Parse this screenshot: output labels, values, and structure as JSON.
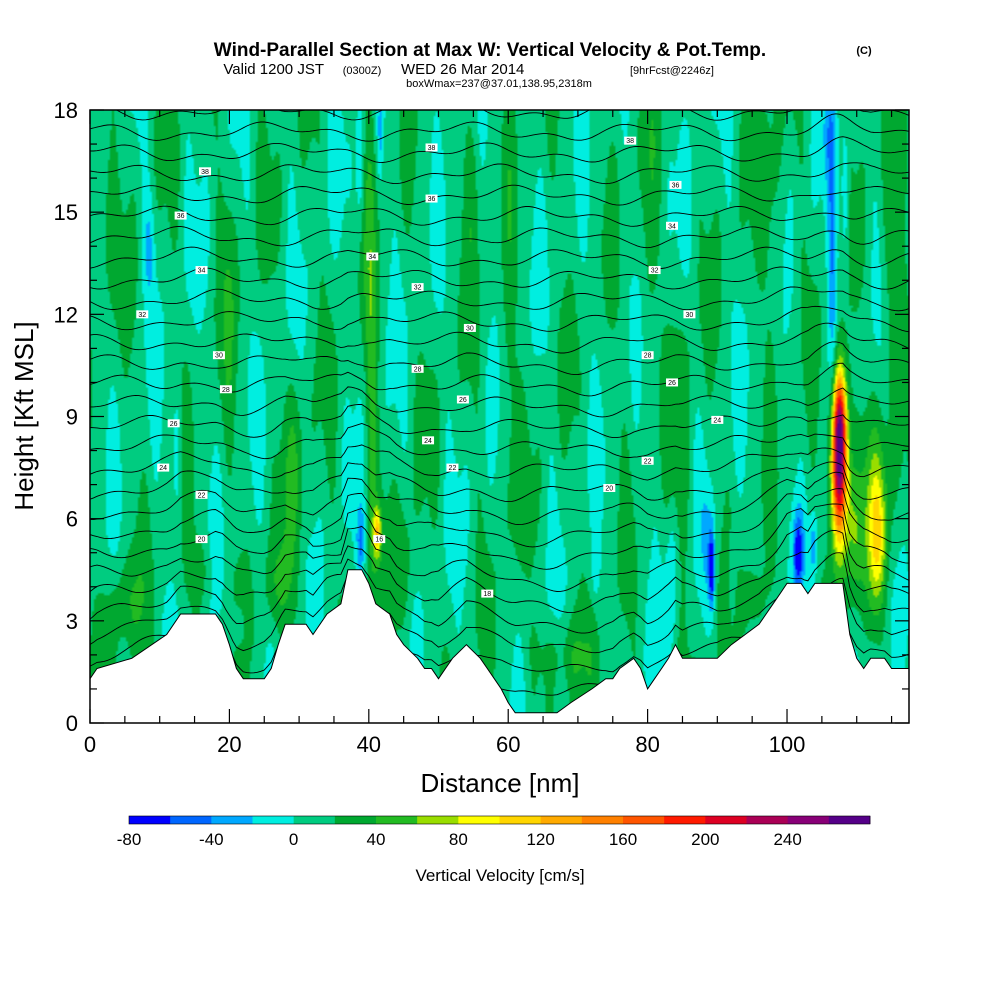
{
  "title": {
    "main": "Wind-Parallel Section at Max W: Vertical Velocity & Pot.Temp.",
    "copyright": "(C)",
    "valid_prefix": "Valid 1200 JST",
    "valid_utc": "(0300Z)",
    "valid_date": "WED 26 Mar 2014",
    "forecast": "[9hrFcst@2246z]",
    "box_info": "boxWmax=237@37.01,138.95,2318m"
  },
  "chart_data": {
    "type": "heatmap",
    "xlabel": "Distance [nm]",
    "ylabel": "Height [Kft MSL]",
    "xlim": [
      0,
      117.5
    ],
    "ylim": [
      0,
      18
    ],
    "x_ticks": [
      0,
      20,
      40,
      60,
      80,
      100
    ],
    "y_ticks": [
      0,
      3,
      6,
      9,
      12,
      15,
      18
    ],
    "colorbar": {
      "label": "Vertical Velocity [cm/s]",
      "min": -80,
      "step": 20,
      "tick_labels": [
        "-80",
        "-40",
        "0",
        "40",
        "80",
        "120",
        "160",
        "200",
        "240"
      ],
      "colors": [
        "#0000ff",
        "#0066ff",
        "#00a8ff",
        "#00eee0",
        "#00cc80",
        "#00a830",
        "#22bb22",
        "#99dd00",
        "#ffff00",
        "#ffd500",
        "#ffaa00",
        "#ff8000",
        "#ff5500",
        "#ff1a00",
        "#dd0022",
        "#aa0055",
        "#880077",
        "#550088"
      ]
    },
    "terrain_profile": [
      [
        0,
        1.3
      ],
      [
        1,
        1.6
      ],
      [
        6,
        1.9
      ],
      [
        11,
        2.6
      ],
      [
        13,
        3.2
      ],
      [
        18,
        3.2
      ],
      [
        19,
        2.9
      ],
      [
        20,
        2.3
      ],
      [
        21,
        1.6
      ],
      [
        22,
        1.3
      ],
      [
        25,
        1.3
      ],
      [
        26,
        1.6
      ],
      [
        27,
        2.3
      ],
      [
        28,
        2.9
      ],
      [
        31,
        2.9
      ],
      [
        32,
        2.6
      ],
      [
        34,
        3.2
      ],
      [
        36,
        3.5
      ],
      [
        37,
        4.5
      ],
      [
        39,
        4.5
      ],
      [
        40,
        4.1
      ],
      [
        41,
        3.5
      ],
      [
        43,
        3.2
      ],
      [
        44,
        2.6
      ],
      [
        45,
        2.3
      ],
      [
        47,
        1.9
      ],
      [
        48,
        1.6
      ],
      [
        49,
        1.6
      ],
      [
        50,
        1.3
      ],
      [
        51,
        1.6
      ],
      [
        52,
        1.9
      ],
      [
        54,
        2.3
      ],
      [
        56,
        1.9
      ],
      [
        57,
        1.6
      ],
      [
        58,
        1.3
      ],
      [
        59,
        1.0
      ],
      [
        60,
        0.6
      ],
      [
        61,
        0.3
      ],
      [
        66,
        0.3
      ],
      [
        67,
        0.3
      ],
      [
        69,
        0.6
      ],
      [
        72,
        1.0
      ],
      [
        74,
        1.3
      ],
      [
        75,
        1.3
      ],
      [
        76,
        1.6
      ],
      [
        78,
        1.9
      ],
      [
        79,
        1.6
      ],
      [
        80,
        1.0
      ],
      [
        81,
        1.3
      ],
      [
        82,
        1.6
      ],
      [
        83,
        1.9
      ],
      [
        84,
        2.3
      ],
      [
        85,
        1.9
      ],
      [
        90,
        1.9
      ],
      [
        92,
        2.3
      ],
      [
        94,
        2.6
      ],
      [
        96,
        2.9
      ],
      [
        97,
        3.2
      ],
      [
        98,
        3.5
      ],
      [
        99,
        3.8
      ],
      [
        100,
        4.1
      ],
      [
        102,
        4.1
      ],
      [
        103,
        3.8
      ],
      [
        104,
        4.1
      ],
      [
        108,
        4.1
      ],
      [
        109,
        2.6
      ],
      [
        110,
        1.9
      ],
      [
        111,
        1.6
      ],
      [
        112,
        1.9
      ],
      [
        114,
        1.9
      ],
      [
        115,
        1.6
      ],
      [
        117.5,
        1.6
      ]
    ],
    "wv_features": [
      {
        "x": 107.5,
        "y": 7.8,
        "sx": 0.8,
        "sy": 1.7,
        "w": 270
      },
      {
        "x": 107.6,
        "y": 8.8,
        "sx": 0.55,
        "sy": 1.0,
        "w": 60
      },
      {
        "x": 109.5,
        "y": 5.5,
        "sx": 1.1,
        "sy": 1.4,
        "w": 40
      },
      {
        "x": 113.0,
        "y": 5.4,
        "sx": 0.9,
        "sy": 1.4,
        "w": 70
      },
      {
        "x": 112.8,
        "y": 7.0,
        "sx": 1.8,
        "sy": 2.0,
        "w": 25
      },
      {
        "x": 106.5,
        "y": 13.5,
        "sx": 0.5,
        "sy": 4.0,
        "w": -45
      },
      {
        "x": 108.3,
        "y": 15.5,
        "sx": 0.4,
        "sy": 1.6,
        "w": -40
      },
      {
        "x": 105.8,
        "y": 17.2,
        "sx": 0.5,
        "sy": 1.0,
        "w": -20
      },
      {
        "x": 101.6,
        "y": 5.0,
        "sx": 0.5,
        "sy": 0.8,
        "w": -70
      },
      {
        "x": 103.8,
        "y": 5.2,
        "sx": 0.4,
        "sy": 0.7,
        "w": -40
      },
      {
        "x": 89.2,
        "y": 4.5,
        "sx": 0.3,
        "sy": 0.8,
        "w": -85
      },
      {
        "x": 88.6,
        "y": 5.3,
        "sx": 0.6,
        "sy": 1.3,
        "w": -30
      },
      {
        "x": 83.5,
        "y": 4.4,
        "sx": 0.6,
        "sy": 1.5,
        "w": -30
      },
      {
        "x": 92.2,
        "y": 4.2,
        "sx": 0.4,
        "sy": 1.0,
        "w": -25
      },
      {
        "x": 72.5,
        "y": 4.5,
        "sx": 0.4,
        "sy": 0.6,
        "w": -25
      },
      {
        "x": 38.8,
        "y": 5.3,
        "sx": 0.4,
        "sy": 0.7,
        "w": -45
      },
      {
        "x": 41.2,
        "y": 5.6,
        "sx": 0.4,
        "sy": 0.5,
        "w": 90
      },
      {
        "x": 40.3,
        "y": 11.0,
        "sx": 0.6,
        "sy": 7.0,
        "w": 35
      },
      {
        "x": 38.8,
        "y": 16.5,
        "sx": 0.4,
        "sy": 1.5,
        "w": -35
      },
      {
        "x": 41.6,
        "y": 17.2,
        "sx": 0.3,
        "sy": 1.0,
        "w": -30
      },
      {
        "x": 8.5,
        "y": 14.0,
        "sx": 0.6,
        "sy": 1.2,
        "w": -30
      },
      {
        "x": 12.5,
        "y": 8.0,
        "sx": 0.5,
        "sy": 1.5,
        "w": -25
      },
      {
        "x": 21.3,
        "y": 2.8,
        "sx": 0.6,
        "sy": 0.4,
        "w": -30
      },
      {
        "x": 15.5,
        "y": 4.5,
        "sx": 1.2,
        "sy": 0.8,
        "w": 30
      },
      {
        "x": 29.5,
        "y": 7.5,
        "sx": 1.0,
        "sy": 2.0,
        "w": 28
      },
      {
        "x": 27.0,
        "y": 4.0,
        "sx": 1.5,
        "sy": 1.0,
        "w": 28
      },
      {
        "x": 45.0,
        "y": 4.5,
        "sx": 1.0,
        "sy": 1.5,
        "w": 28
      },
      {
        "x": 5.0,
        "y": 3.5,
        "sx": 2.0,
        "sy": 1.0,
        "w": 25
      },
      {
        "x": 95.0,
        "y": 3.5,
        "sx": 1.5,
        "sy": 0.8,
        "w": 28
      },
      {
        "x": 85.0,
        "y": 8.0,
        "sx": 1.0,
        "sy": 3.0,
        "w": 25
      },
      {
        "x": 60.0,
        "y": 9.0,
        "sx": 0.8,
        "sy": 4.0,
        "w": 22
      },
      {
        "x": 98.0,
        "y": 15.0,
        "sx": 1.0,
        "sy": 3.0,
        "w": 25
      },
      {
        "x": 2.0,
        "y": 15.0,
        "sx": 1.0,
        "sy": 2.0,
        "w": 25
      },
      {
        "x": 55.0,
        "y": 16.0,
        "sx": 0.8,
        "sy": 2.0,
        "w": 25
      },
      {
        "x": 80.0,
        "y": 14.0,
        "sx": 0.8,
        "sy": 3.0,
        "w": 22
      },
      {
        "x": 20.0,
        "y": 13.0,
        "sx": 0.8,
        "sy": 3.0,
        "w": 20
      },
      {
        "x": 115.0,
        "y": 13.0,
        "sx": 1.0,
        "sy": 3.0,
        "w": 28
      },
      {
        "x": 68.0,
        "y": 2.0,
        "sx": 3.0,
        "sy": 0.8,
        "w": 24
      }
    ],
    "theta_contours": {
      "levels": [
        18,
        19,
        20,
        21,
        22,
        23,
        24,
        25,
        26,
        27,
        28,
        29,
        30,
        31,
        32,
        33,
        34,
        35,
        36,
        37,
        38,
        39,
        40,
        41,
        42,
        43,
        44,
        45,
        46
      ],
      "labels": [
        {
          "text": "18",
          "x": 57,
          "y": 3.8
        },
        {
          "text": "20",
          "x": 74.5,
          "y": 6.9
        },
        {
          "text": "22",
          "x": 80,
          "y": 7.7
        },
        {
          "text": "24",
          "x": 90,
          "y": 8.9
        },
        {
          "text": "26",
          "x": 83.5,
          "y": 10.0
        },
        {
          "text": "28",
          "x": 80,
          "y": 10.8
        },
        {
          "text": "30",
          "x": 86,
          "y": 12.0
        },
        {
          "text": "32",
          "x": 81,
          "y": 13.3
        },
        {
          "text": "34",
          "x": 83.5,
          "y": 14.6
        },
        {
          "text": "36",
          "x": 84,
          "y": 15.8
        },
        {
          "text": "38",
          "x": 77.5,
          "y": 17.1
        },
        {
          "text": "20",
          "x": 16,
          "y": 5.4
        },
        {
          "text": "22",
          "x": 16,
          "y": 6.7
        },
        {
          "text": "24",
          "x": 10.5,
          "y": 7.5
        },
        {
          "text": "26",
          "x": 12,
          "y": 8.8
        },
        {
          "text": "28",
          "x": 19.5,
          "y": 9.8
        },
        {
          "text": "30",
          "x": 18.5,
          "y": 10.8
        },
        {
          "text": "32",
          "x": 7.5,
          "y": 12.0
        },
        {
          "text": "34",
          "x": 16,
          "y": 13.3
        },
        {
          "text": "36",
          "x": 13,
          "y": 14.9
        },
        {
          "text": "38",
          "x": 16.5,
          "y": 16.2
        },
        {
          "text": "16",
          "x": 41.5,
          "y": 5.4
        },
        {
          "text": "22",
          "x": 52,
          "y": 7.5
        },
        {
          "text": "24",
          "x": 48.5,
          "y": 8.3
        },
        {
          "text": "26",
          "x": 53.5,
          "y": 9.5
        },
        {
          "text": "28",
          "x": 47,
          "y": 10.4
        },
        {
          "text": "30",
          "x": 54.5,
          "y": 11.6
        },
        {
          "text": "32",
          "x": 47,
          "y": 12.8
        },
        {
          "text": "34",
          "x": 40.5,
          "y": 13.7
        },
        {
          "text": "36",
          "x": 49,
          "y": 15.4
        },
        {
          "text": "38",
          "x": 49,
          "y": 16.9
        }
      ]
    }
  }
}
